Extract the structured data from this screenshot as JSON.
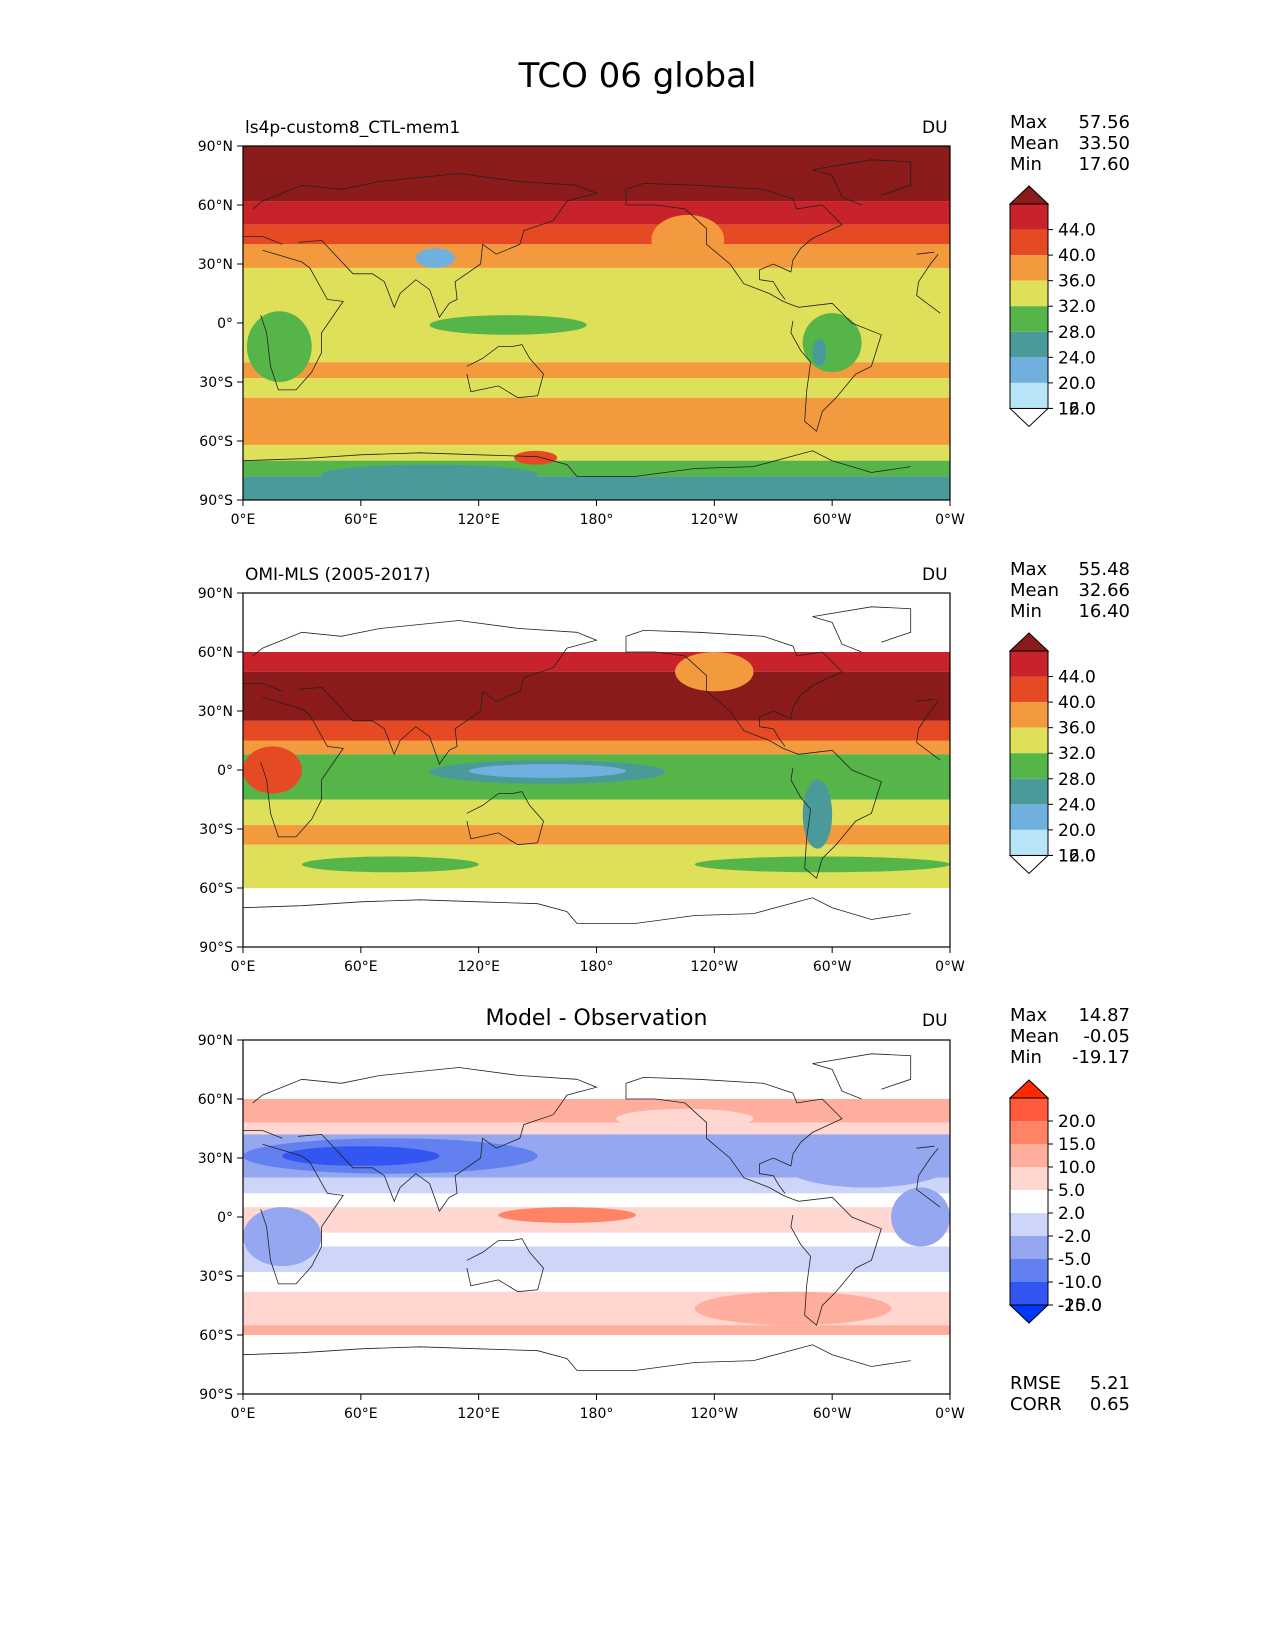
{
  "figure": {
    "title": "TCO 06 global"
  },
  "chart_data": [
    {
      "type": "heatmap",
      "title": "ls4p-custom8_CTL-mem1",
      "units": "DU",
      "xlabel": "",
      "ylabel": "",
      "x_ticks": [
        "0°E",
        "60°E",
        "120°E",
        "180°",
        "120°W",
        "60°W",
        "0°W"
      ],
      "y_ticks": [
        "90°N",
        "60°N",
        "30°N",
        "0°",
        "30°S",
        "60°S",
        "90°S"
      ],
      "ylim": [
        -90,
        90
      ],
      "stats": [
        {
          "label": "Max",
          "value": "57.56"
        },
        {
          "label": "Mean",
          "value": "33.50"
        },
        {
          "label": "Min",
          "value": "17.60"
        }
      ],
      "colorbar": {
        "labels": [
          "44.0",
          "40.0",
          "36.0",
          "32.0",
          "28.0",
          "24.0",
          "20.0",
          "16.0",
          "12.0"
        ],
        "colors": [
          "#8b1a1a",
          "#c8222a",
          "#e64a24",
          "#f39a3f",
          "#dfe05a",
          "#55b548",
          "#4a9a9a",
          "#6fb0de",
          "#b8e4f8",
          "#ffffff"
        ]
      },
      "lat_bands": [
        {
          "from": 90,
          "to": 62,
          "color": "#8b1a1a"
        },
        {
          "from": 62,
          "to": 50,
          "color": "#c8222a"
        },
        {
          "from": 50,
          "to": 40,
          "color": "#e64a24"
        },
        {
          "from": 40,
          "to": 28,
          "color": "#f39a3f"
        },
        {
          "from": 28,
          "to": -20,
          "color": "#dfe05a"
        },
        {
          "from": -20,
          "to": -28,
          "color": "#f39a3f"
        },
        {
          "from": -28,
          "to": -38,
          "color": "#dfe05a"
        },
        {
          "from": -38,
          "to": -62,
          "color": "#f39a3f"
        },
        {
          "from": -62,
          "to": -70,
          "color": "#dfe05a"
        },
        {
          "from": -70,
          "to": -78,
          "color": "#55b548"
        },
        {
          "from": -78,
          "to": -90,
          "color": "#4a9a9a"
        }
      ],
      "patches": [
        {
          "lon": [
            2,
            35
          ],
          "lat": [
            6,
            -30
          ],
          "color": "#55b548"
        },
        {
          "lon": [
            88,
            108
          ],
          "lat": [
            38,
            28
          ],
          "color": "#6fb0de"
        },
        {
          "lon": [
            95,
            175
          ],
          "lat": [
            4,
            -6
          ],
          "color": "#55b548"
        },
        {
          "lon": [
            285,
            315
          ],
          "lat": [
            5,
            -25
          ],
          "color": "#55b548"
        },
        {
          "lon": [
            290,
            297
          ],
          "lat": [
            -8,
            -22
          ],
          "color": "#4a9a9a"
        },
        {
          "lon": [
            208,
            245
          ],
          "lat": [
            55,
            30
          ],
          "color": "#f39a3f"
        },
        {
          "lon": [
            138,
            160
          ],
          "lat": [
            -65,
            -72
          ],
          "color": "#e64a24"
        },
        {
          "lon": [
            40,
            150
          ],
          "lat": [
            -72,
            -82
          ],
          "color": "#4a9a9a"
        }
      ]
    },
    {
      "type": "heatmap",
      "title": "OMI-MLS (2005-2017)",
      "units": "DU",
      "xlabel": "",
      "ylabel": "",
      "x_ticks": [
        "0°E",
        "60°E",
        "120°E",
        "180°",
        "120°W",
        "60°W",
        "0°W"
      ],
      "y_ticks": [
        "90°N",
        "60°N",
        "30°N",
        "0°",
        "30°S",
        "60°S",
        "90°S"
      ],
      "ylim": [
        -90,
        90
      ],
      "stats": [
        {
          "label": "Max",
          "value": "55.48"
        },
        {
          "label": "Mean",
          "value": "32.66"
        },
        {
          "label": "Min",
          "value": "16.40"
        }
      ],
      "colorbar": {
        "labels": [
          "44.0",
          "40.0",
          "36.0",
          "32.0",
          "28.0",
          "24.0",
          "20.0",
          "16.0",
          "12.0"
        ],
        "colors": [
          "#8b1a1a",
          "#c8222a",
          "#e64a24",
          "#f39a3f",
          "#dfe05a",
          "#55b548",
          "#4a9a9a",
          "#6fb0de",
          "#b8e4f8",
          "#ffffff"
        ]
      },
      "lat_bands": [
        {
          "from": 60,
          "to": 50,
          "color": "#c8222a"
        },
        {
          "from": 50,
          "to": 25,
          "color": "#8b1a1a"
        },
        {
          "from": 25,
          "to": 15,
          "color": "#e64a24"
        },
        {
          "from": 15,
          "to": 8,
          "color": "#f39a3f"
        },
        {
          "from": 8,
          "to": -15,
          "color": "#55b548"
        },
        {
          "from": -15,
          "to": -28,
          "color": "#dfe05a"
        },
        {
          "from": -28,
          "to": -38,
          "color": "#f39a3f"
        },
        {
          "from": -38,
          "to": -60,
          "color": "#dfe05a"
        }
      ],
      "patches": [
        {
          "lon": [
            95,
            215
          ],
          "lat": [
            5,
            -7
          ],
          "color": "#4a9a9a"
        },
        {
          "lon": [
            115,
            195
          ],
          "lat": [
            3,
            -4
          ],
          "color": "#6fb0de"
        },
        {
          "lon": [
            285,
            300
          ],
          "lat": [
            -5,
            -40
          ],
          "color": "#4a9a9a"
        },
        {
          "lon": [
            0,
            30
          ],
          "lat": [
            12,
            -12
          ],
          "color": "#e64a24"
        },
        {
          "lon": [
            30,
            120
          ],
          "lat": [
            -44,
            -52
          ],
          "color": "#55b548"
        },
        {
          "lon": [
            230,
            360
          ],
          "lat": [
            -44,
            -52
          ],
          "color": "#55b548"
        },
        {
          "lon": [
            220,
            260
          ],
          "lat": [
            60,
            40
          ],
          "color": "#f39a3f"
        }
      ]
    },
    {
      "type": "heatmap",
      "title": "Model - Observation",
      "units": "DU",
      "xlabel": "",
      "ylabel": "",
      "x_ticks": [
        "0°E",
        "60°E",
        "120°E",
        "180°",
        "120°W",
        "60°W",
        "0°W"
      ],
      "y_ticks": [
        "90°N",
        "60°N",
        "30°N",
        "0°",
        "30°S",
        "60°S",
        "90°S"
      ],
      "ylim": [
        -90,
        90
      ],
      "stats": [
        {
          "label": "Max",
          "value": "14.87"
        },
        {
          "label": "Mean",
          "value": "-0.05"
        },
        {
          "label": "Min",
          "value": "-19.17"
        }
      ],
      "extra_stats": [
        {
          "label": "RMSE",
          "value": "5.21"
        },
        {
          "label": "CORR",
          "value": "0.65"
        }
      ],
      "colorbar": {
        "labels": [
          "20.0",
          "15.0",
          "10.0",
          "5.0",
          "2.0",
          "-2.0",
          "-5.0",
          "-10.0",
          "-15.0",
          "-20.0"
        ],
        "colors": [
          "#ff2a00",
          "#ff5a3c",
          "#ff8466",
          "#ffae9e",
          "#ffd6d0",
          "#ffffff",
          "#cdd5f8",
          "#96a7f2",
          "#6280f0",
          "#3356f2",
          "#0038ff"
        ]
      },
      "lat_bands": [
        {
          "from": 60,
          "to": 48,
          "color": "#ffae9e"
        },
        {
          "from": 48,
          "to": 42,
          "color": "#ffd6d0"
        },
        {
          "from": 42,
          "to": 20,
          "color": "#96a7f2"
        },
        {
          "from": 20,
          "to": 12,
          "color": "#cdd5f8"
        },
        {
          "from": 12,
          "to": 5,
          "color": "#ffffff"
        },
        {
          "from": 5,
          "to": -8,
          "color": "#ffd6d0"
        },
        {
          "from": -8,
          "to": -15,
          "color": "#ffffff"
        },
        {
          "from": -15,
          "to": -28,
          "color": "#cdd5f8"
        },
        {
          "from": -28,
          "to": -38,
          "color": "#ffffff"
        },
        {
          "from": -38,
          "to": -55,
          "color": "#ffd6d0"
        },
        {
          "from": -55,
          "to": -60,
          "color": "#ffae9e"
        }
      ],
      "patches": [
        {
          "lon": [
            0,
            150
          ],
          "lat": [
            40,
            22
          ],
          "color": "#6280f0"
        },
        {
          "lon": [
            20,
            100
          ],
          "lat": [
            36,
            26
          ],
          "color": "#3356f2"
        },
        {
          "lon": [
            275,
            360
          ],
          "lat": [
            38,
            15
          ],
          "color": "#96a7f2"
        },
        {
          "lon": [
            330,
            360
          ],
          "lat": [
            15,
            -15
          ],
          "color": "#96a7f2"
        },
        {
          "lon": [
            0,
            40
          ],
          "lat": [
            5,
            -25
          ],
          "color": "#96a7f2"
        },
        {
          "lon": [
            130,
            200
          ],
          "lat": [
            5,
            -3
          ],
          "color": "#ff8466"
        },
        {
          "lon": [
            190,
            260
          ],
          "lat": [
            55,
            45
          ],
          "color": "#ffd6d0"
        },
        {
          "lon": [
            230,
            330
          ],
          "lat": [
            -38,
            -55
          ],
          "color": "#ffae9e"
        }
      ]
    }
  ]
}
